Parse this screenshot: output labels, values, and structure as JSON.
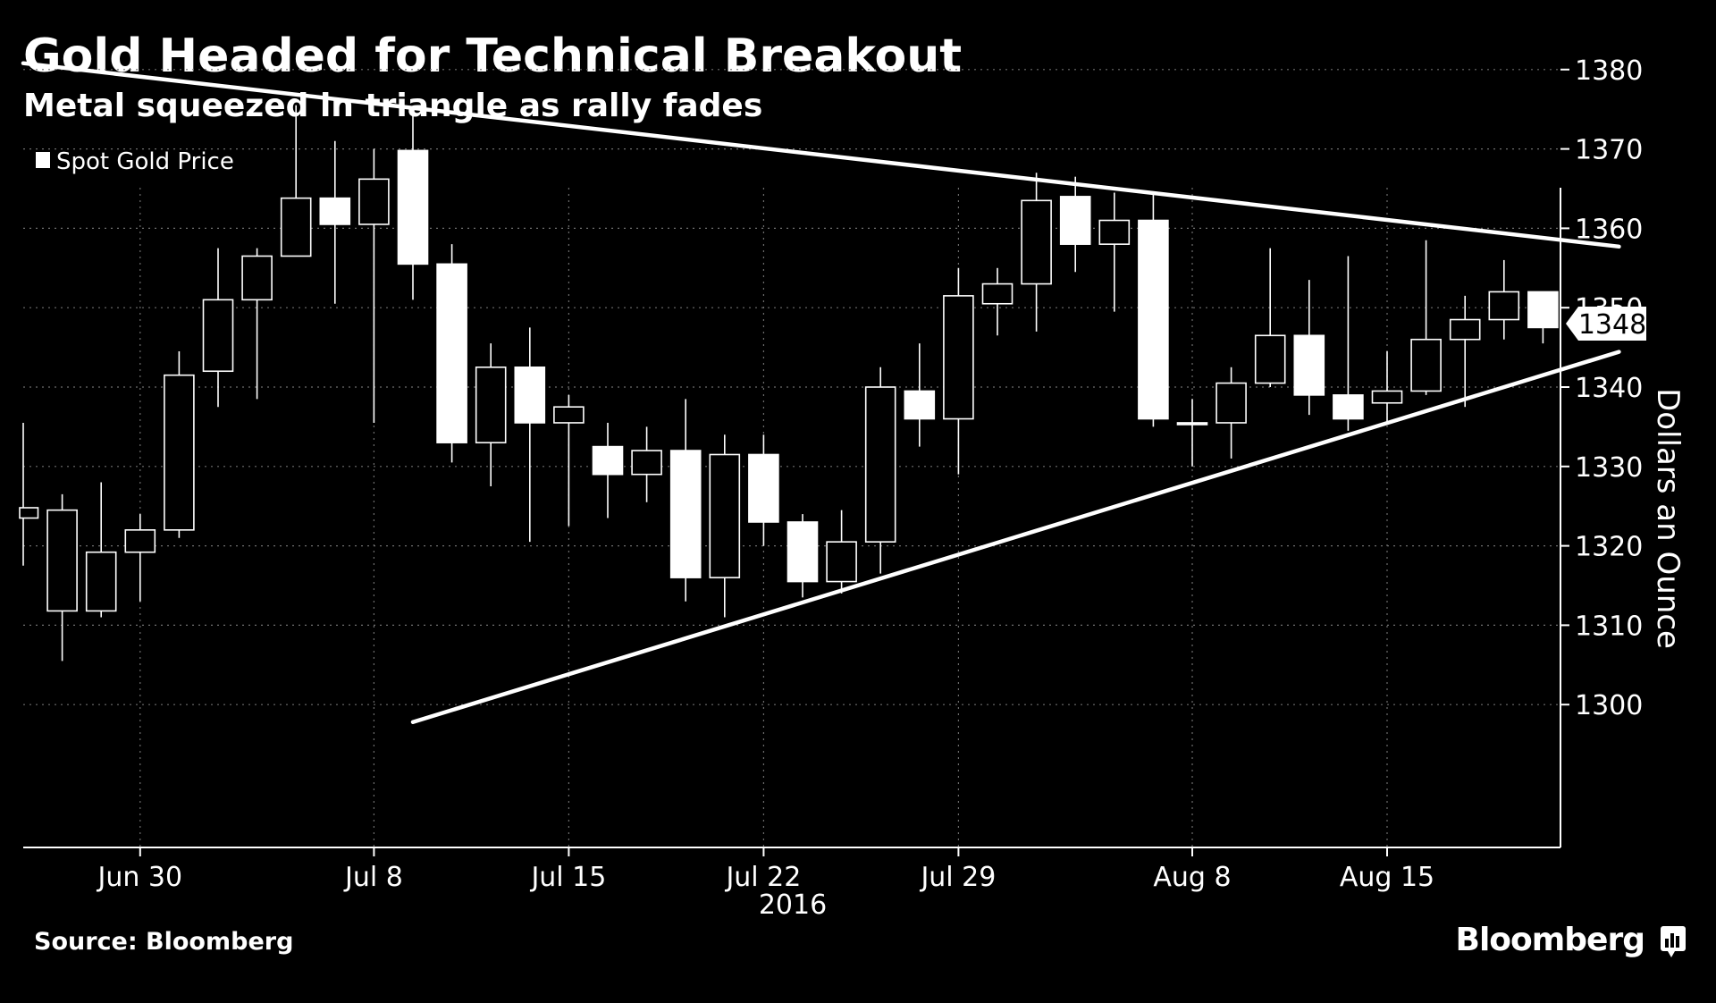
{
  "header": {
    "title": "Gold Headed for Technical Breakout",
    "subtitle": "Metal squeezed in triangle as rally fades"
  },
  "footer": {
    "source": "Source: Bloomberg",
    "brand": "Bloomberg"
  },
  "colors": {
    "background": "#000000",
    "foreground": "#ffffff",
    "grid": "#6e6e6e"
  },
  "chart_data": {
    "type": "candlestick",
    "legend": [
      {
        "name": "Spot Gold Price",
        "position": "top-left"
      }
    ],
    "ylabel": "Dollars an Ounce",
    "xlabel_year": "2016",
    "ylim": [
      1298,
      1382
    ],
    "y_ticks": [
      1300,
      1310,
      1320,
      1330,
      1340,
      1350,
      1360,
      1370,
      1380
    ],
    "grid": true,
    "last_value_label": "1348",
    "x_ticks": [
      {
        "label": "Jun 30",
        "date": "2016-06-30"
      },
      {
        "label": "Jul 8",
        "date": "2016-07-08"
      },
      {
        "label": "Jul 15",
        "date": "2016-07-15"
      },
      {
        "label": "Jul 22",
        "date": "2016-07-22"
      },
      {
        "label": "Jul 29",
        "date": "2016-07-29"
      },
      {
        "label": "Aug 8",
        "date": "2016-08-08"
      },
      {
        "label": "Aug 15",
        "date": "2016-08-15"
      }
    ],
    "candles": [
      {
        "date": "2016-06-27",
        "open": 1323.5,
        "close": 1324.8,
        "high": 1335.5,
        "low": 1317.5
      },
      {
        "date": "2016-06-28",
        "open": 1311.8,
        "close": 1324.5,
        "high": 1326.5,
        "low": 1305.5
      },
      {
        "date": "2016-06-29",
        "open": 1311.8,
        "close": 1319.2,
        "high": 1328.0,
        "low": 1311.0
      },
      {
        "date": "2016-06-30",
        "open": 1319.2,
        "close": 1322.0,
        "high": 1324.0,
        "low": 1313.0
      },
      {
        "date": "2016-07-01",
        "open": 1322.0,
        "close": 1341.5,
        "high": 1344.5,
        "low": 1321.0
      },
      {
        "date": "2016-07-04",
        "open": 1342.0,
        "close": 1351.0,
        "high": 1357.5,
        "low": 1337.5
      },
      {
        "date": "2016-07-05",
        "open": 1351.0,
        "close": 1356.5,
        "high": 1357.5,
        "low": 1338.5
      },
      {
        "date": "2016-07-06",
        "open": 1356.5,
        "close": 1363.8,
        "high": 1375.5,
        "low": 1356.5
      },
      {
        "date": "2016-07-07",
        "open": 1363.8,
        "close": 1360.5,
        "high": 1371.0,
        "low": 1350.5
      },
      {
        "date": "2016-07-08",
        "open": 1360.5,
        "close": 1366.2,
        "high": 1370.0,
        "low": 1335.5
      },
      {
        "date": "2016-07-11",
        "open": 1369.8,
        "close": 1355.5,
        "high": 1375.0,
        "low": 1351.0
      },
      {
        "date": "2016-07-12",
        "open": 1355.5,
        "close": 1333.0,
        "high": 1358.0,
        "low": 1330.5
      },
      {
        "date": "2016-07-13",
        "open": 1333.0,
        "close": 1342.5,
        "high": 1345.5,
        "low": 1327.5
      },
      {
        "date": "2016-07-14",
        "open": 1342.5,
        "close": 1335.5,
        "high": 1347.5,
        "low": 1320.5
      },
      {
        "date": "2016-07-15",
        "open": 1335.5,
        "close": 1337.5,
        "high": 1339.0,
        "low": 1322.5
      },
      {
        "date": "2016-07-18",
        "open": 1332.5,
        "close": 1329.0,
        "high": 1335.5,
        "low": 1323.5
      },
      {
        "date": "2016-07-19",
        "open": 1329.0,
        "close": 1332.0,
        "high": 1335.0,
        "low": 1325.5
      },
      {
        "date": "2016-07-20",
        "open": 1332.0,
        "close": 1316.0,
        "high": 1338.5,
        "low": 1313.0
      },
      {
        "date": "2016-07-21",
        "open": 1316.0,
        "close": 1331.5,
        "high": 1334.0,
        "low": 1311.0
      },
      {
        "date": "2016-07-22",
        "open": 1331.5,
        "close": 1323.0,
        "high": 1334.0,
        "low": 1320.0
      },
      {
        "date": "2016-07-25",
        "open": 1323.0,
        "close": 1315.5,
        "high": 1324.0,
        "low": 1313.5
      },
      {
        "date": "2016-07-26",
        "open": 1315.5,
        "close": 1320.5,
        "high": 1324.5,
        "low": 1314.0
      },
      {
        "date": "2016-07-27",
        "open": 1320.5,
        "close": 1340.0,
        "high": 1342.5,
        "low": 1316.5
      },
      {
        "date": "2016-07-28",
        "open": 1339.5,
        "close": 1336.0,
        "high": 1345.5,
        "low": 1332.5
      },
      {
        "date": "2016-07-29",
        "open": 1336.0,
        "close": 1351.5,
        "high": 1355.0,
        "low": 1329.0
      },
      {
        "date": "2016-08-01",
        "open": 1350.5,
        "close": 1353.0,
        "high": 1355.0,
        "low": 1346.5
      },
      {
        "date": "2016-08-02",
        "open": 1353.0,
        "close": 1363.5,
        "high": 1367.0,
        "low": 1347.0
      },
      {
        "date": "2016-08-03",
        "open": 1364.0,
        "close": 1358.0,
        "high": 1366.5,
        "low": 1354.5
      },
      {
        "date": "2016-08-04",
        "open": 1358.0,
        "close": 1361.0,
        "high": 1364.5,
        "low": 1349.5
      },
      {
        "date": "2016-08-05",
        "open": 1361.0,
        "close": 1336.0,
        "high": 1364.5,
        "low": 1335.0
      },
      {
        "date": "2016-08-08",
        "open": 1335.5,
        "close": 1335.5,
        "high": 1338.5,
        "low": 1330.0
      },
      {
        "date": "2016-08-09",
        "open": 1335.5,
        "close": 1340.5,
        "high": 1342.5,
        "low": 1331.0
      },
      {
        "date": "2016-08-10",
        "open": 1340.5,
        "close": 1346.5,
        "high": 1357.5,
        "low": 1340.0
      },
      {
        "date": "2016-08-11",
        "open": 1346.5,
        "close": 1339.0,
        "high": 1353.5,
        "low": 1336.5
      },
      {
        "date": "2016-08-12",
        "open": 1339.0,
        "close": 1336.0,
        "high": 1356.5,
        "low": 1334.5
      },
      {
        "date": "2016-08-15",
        "open": 1338.0,
        "close": 1339.5,
        "high": 1344.5,
        "low": 1335.5
      },
      {
        "date": "2016-08-16",
        "open": 1339.5,
        "close": 1346.0,
        "high": 1358.5,
        "low": 1339.0
      },
      {
        "date": "2016-08-17",
        "open": 1346.0,
        "close": 1348.5,
        "high": 1351.5,
        "low": 1337.5
      },
      {
        "date": "2016-08-18",
        "open": 1348.5,
        "close": 1352.0,
        "high": 1356.0,
        "low": 1346.0
      },
      {
        "date": "2016-08-19",
        "open": 1352.0,
        "close": 1347.5,
        "high": 1352.0,
        "low": 1345.5
      }
    ],
    "trendlines": [
      {
        "from": {
          "date": "2016-06-27",
          "value": 1380.8
        },
        "to": {
          "date": "2016-08-19",
          "value": 1358.8
        }
      },
      {
        "from": {
          "date": "2016-07-11",
          "value": 1297.8
        },
        "to": {
          "date": "2016-08-19",
          "value": 1341.5
        }
      }
    ]
  }
}
